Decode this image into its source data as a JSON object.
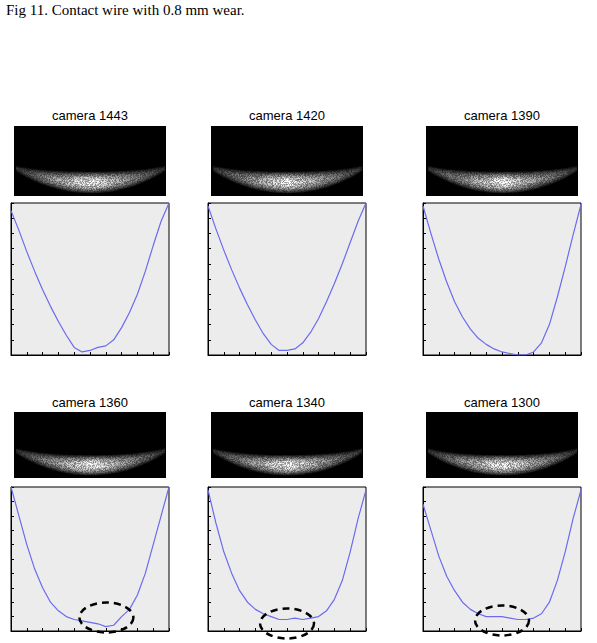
{
  "caption": "Fig 11. Contact wire with 0.8 mm wear.",
  "chart_data": [
    {
      "type": "line",
      "title": "camera 1443",
      "color": "#6b6bf0",
      "grid": false,
      "tick_labels": false,
      "x": [
        0,
        0.5,
        1,
        1.5,
        2,
        2.5,
        3,
        3.5,
        4,
        4.5,
        5,
        5.5,
        6,
        6.5,
        7,
        7.5,
        8,
        8.5,
        9,
        9.5,
        10
      ],
      "values": [
        9.5,
        8.2,
        6.8,
        5.5,
        4.3,
        3.2,
        2.2,
        1.3,
        0.5,
        0.2,
        0.3,
        0.5,
        0.6,
        1.0,
        1.8,
        2.8,
        4.0,
        5.5,
        7.2,
        8.8,
        10
      ],
      "xlim": [
        0,
        10
      ],
      "ylim": [
        0,
        10
      ],
      "xticks": [
        0,
        1,
        2,
        3,
        4,
        5,
        6,
        7,
        8,
        9,
        10
      ],
      "yticks": [
        0,
        1,
        2,
        3,
        4,
        5,
        6,
        7,
        8,
        9,
        10
      ]
    },
    {
      "type": "line",
      "title": "camera 1420",
      "color": "#6b6bf0",
      "grid": false,
      "tick_labels": false,
      "x": [
        0,
        0.5,
        1,
        1.5,
        2,
        2.5,
        3,
        3.5,
        4,
        4.5,
        5,
        5.5,
        6,
        6.5,
        7,
        7.5,
        8,
        8.5,
        9,
        9.5,
        10
      ],
      "values": [
        9.8,
        8.3,
        6.9,
        5.6,
        4.4,
        3.3,
        2.3,
        1.4,
        0.7,
        0.3,
        0.3,
        0.4,
        0.8,
        1.5,
        2.4,
        3.5,
        4.7,
        6.0,
        7.4,
        8.8,
        10
      ],
      "xlim": [
        0,
        10
      ],
      "ylim": [
        0,
        10
      ],
      "xticks": [
        0,
        1,
        2,
        3,
        4,
        5,
        6,
        7,
        8,
        9,
        10
      ],
      "yticks": [
        0,
        1,
        2,
        3,
        4,
        5,
        6,
        7,
        8,
        9,
        10
      ]
    },
    {
      "type": "line",
      "title": "camera 1390",
      "color": "#6b6bf0",
      "grid": false,
      "tick_labels": false,
      "x": [
        0,
        0.5,
        1,
        1.5,
        2,
        2.5,
        3,
        3.5,
        4,
        4.5,
        5,
        5.5,
        6,
        6.5,
        7,
        7.5,
        8,
        8.5,
        9,
        9.5,
        10
      ],
      "values": [
        9.8,
        8.0,
        6.3,
        4.8,
        3.5,
        2.5,
        1.7,
        1.1,
        0.7,
        0.4,
        0.2,
        0.1,
        0.0,
        0.0,
        0.2,
        0.8,
        2.0,
        3.8,
        5.8,
        7.9,
        9.9
      ],
      "xlim": [
        0,
        10
      ],
      "ylim": [
        0,
        10
      ],
      "xticks": [
        0,
        1,
        2,
        3,
        4,
        5,
        6,
        7,
        8,
        9,
        10
      ],
      "yticks": [
        0,
        1,
        2,
        3,
        4,
        5,
        6,
        7,
        8,
        9,
        10
      ]
    },
    {
      "type": "line",
      "title": "camera 1360",
      "color": "#6b6bf0",
      "grid": false,
      "tick_labels": false,
      "x": [
        0,
        0.5,
        1,
        1.5,
        2,
        2.5,
        3,
        3.5,
        4,
        4.5,
        5,
        5.5,
        6,
        6.5,
        7,
        7.5,
        8,
        8.5,
        9,
        9.5,
        10
      ],
      "values": [
        10,
        8.0,
        6.0,
        4.3,
        3.0,
        2.0,
        1.4,
        1.0,
        0.8,
        0.7,
        0.6,
        0.5,
        0.3,
        0.4,
        1.0,
        1.5,
        2.5,
        4.0,
        6.0,
        8.0,
        10
      ],
      "xlim": [
        0,
        10
      ],
      "ylim": [
        0,
        10
      ],
      "xticks": [
        0,
        1,
        2,
        3,
        4,
        5,
        6,
        7,
        8,
        9,
        10
      ],
      "yticks": [
        0,
        1,
        2,
        3,
        4,
        5,
        6,
        7,
        8,
        9,
        10
      ]
    },
    {
      "type": "line",
      "title": "camera 1340",
      "color": "#6b6bf0",
      "grid": false,
      "tick_labels": false,
      "x": [
        0,
        0.5,
        1,
        1.5,
        2,
        2.5,
        3,
        3.5,
        4,
        4.5,
        5,
        5.5,
        6,
        6.5,
        7,
        7.5,
        8,
        8.5,
        9,
        9.5,
        10
      ],
      "values": [
        9.8,
        7.5,
        5.5,
        4.0,
        2.8,
        2.0,
        1.5,
        1.2,
        1.0,
        0.8,
        0.8,
        0.9,
        0.8,
        0.9,
        1.0,
        1.4,
        2.2,
        3.5,
        5.5,
        7.8,
        9.8
      ],
      "xlim": [
        0,
        10
      ],
      "ylim": [
        0,
        10
      ],
      "xticks": [
        0,
        1,
        2,
        3,
        4,
        5,
        6,
        7,
        8,
        9,
        10
      ],
      "yticks": [
        0,
        1,
        2,
        3,
        4,
        5,
        6,
        7,
        8,
        9,
        10
      ]
    },
    {
      "type": "line",
      "title": "camera 1300",
      "color": "#6b6bf0",
      "grid": false,
      "tick_labels": false,
      "x": [
        0,
        0.5,
        1,
        1.5,
        2,
        2.5,
        3,
        3.5,
        4,
        4.5,
        5,
        5.5,
        6,
        6.5,
        7,
        7.5,
        8,
        8.5,
        9,
        9.5,
        10
      ],
      "values": [
        8.8,
        7.0,
        5.2,
        3.8,
        2.8,
        2.0,
        1.5,
        1.2,
        1.0,
        1.0,
        1.0,
        0.9,
        0.8,
        0.8,
        0.9,
        1.2,
        2.0,
        3.5,
        5.5,
        7.8,
        9.8
      ],
      "xlim": [
        0,
        10
      ],
      "ylim": [
        0,
        10
      ],
      "xticks": [
        0,
        1,
        2,
        3,
        4,
        5,
        6,
        7,
        8,
        9,
        10
      ],
      "yticks": [
        0,
        1,
        2,
        3,
        4,
        5,
        6,
        7,
        8,
        9,
        10
      ]
    }
  ]
}
